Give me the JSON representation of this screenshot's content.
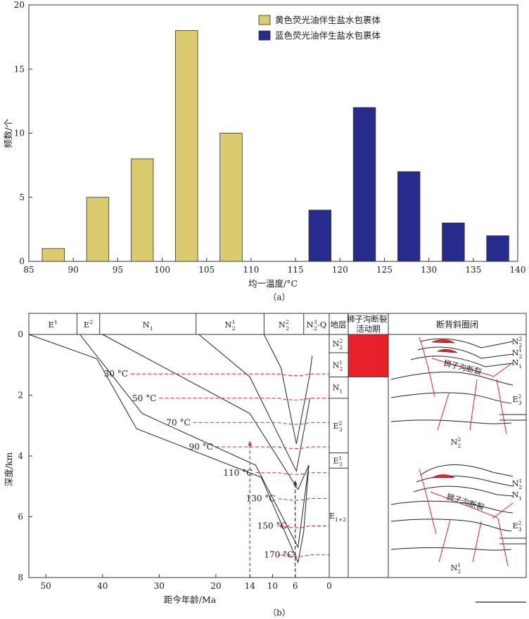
{
  "chart_data": [
    {
      "panel": "a",
      "type": "bar",
      "caption": "（a）",
      "xlabel": "均一温度/°C",
      "ylabel": "频数/个",
      "xlim": [
        85,
        140
      ],
      "ylim": [
        0,
        20
      ],
      "xticks": [
        85,
        90,
        95,
        100,
        105,
        110,
        115,
        120,
        125,
        130,
        135,
        140
      ],
      "yticks": [
        0,
        5,
        10,
        15,
        20
      ],
      "legend_position": "top-right",
      "series": [
        {
          "name": "黄色荧光油伴生盐水包裹体",
          "color": "#d9cb6e",
          "bins": [
            [
              86.5,
              89,
              1
            ],
            [
              91.5,
              94,
              5
            ],
            [
              96.5,
              99,
              8
            ],
            [
              101.5,
              104,
              18
            ],
            [
              106.5,
              109,
              10
            ]
          ]
        },
        {
          "name": "蓝色荧光油伴生盐水包裹体",
          "color": "#272b8c",
          "bins": [
            [
              116.5,
              119,
              4
            ],
            [
              121.5,
              124,
              12
            ],
            [
              126.5,
              129,
              7
            ],
            [
              131.5,
              134,
              3
            ],
            [
              136.5,
              139,
              2
            ]
          ]
        }
      ]
    },
    {
      "panel": "b",
      "type": "line",
      "caption": "（b）",
      "xlabel": "距今年龄/Ma",
      "ylabel": "深度/km",
      "xlim": [
        53,
        0
      ],
      "ylim": [
        0,
        8
      ],
      "xticks": [
        50,
        40,
        30,
        20,
        10,
        0
      ],
      "extra_xticks": [
        14,
        6
      ],
      "yticks": [
        0,
        2,
        4,
        6,
        8
      ],
      "strata": [
        {
          "base": "E",
          "sup": "1",
          "from": 53,
          "to": 44.5
        },
        {
          "base": "E",
          "sup": "2",
          "from": 44.5,
          "to": 40.5
        },
        {
          "base": "N",
          "sub": "1",
          "from": 40.5,
          "to": 23.5
        },
        {
          "base": "N",
          "sub": "2",
          "sup": "1",
          "from": 23.5,
          "to": 11.5
        },
        {
          "base": "N",
          "sub": "2",
          "sup": "2",
          "from": 11.5,
          "to": 4.5
        },
        {
          "base": "N",
          "sub": "2",
          "sup": "3",
          "tail": "-Q",
          "from": 4.5,
          "to": 0
        }
      ],
      "burial_curves": [
        [
          [
            53,
            0
          ],
          [
            41,
            0.8
          ],
          [
            34,
            3.1
          ],
          [
            12,
            4.7
          ],
          [
            5.5,
            7.5
          ],
          [
            4.5,
            6.5
          ],
          [
            3.6,
            4.3
          ]
        ],
        [
          [
            44,
            0
          ],
          [
            33,
            2.6
          ],
          [
            13,
            4.3
          ],
          [
            5.5,
            7.0
          ],
          [
            3.6,
            4.3
          ]
        ],
        [
          [
            40,
            0
          ],
          [
            14,
            2.6
          ],
          [
            5.5,
            5.1
          ],
          [
            3.6,
            4.3
          ]
        ],
        [
          [
            23,
            0
          ],
          [
            14,
            1.4
          ],
          [
            5.8,
            4.5
          ],
          [
            3.4,
            2.1
          ]
        ],
        [
          [
            11.5,
            0
          ],
          [
            8.5,
            1.1
          ],
          [
            5.8,
            3.6
          ],
          [
            3.5,
            1.4
          ],
          [
            3.0,
            0.7
          ]
        ]
      ],
      "isotherms": [
        {
          "label": "30 °C",
          "depth": 1.3
        },
        {
          "label": "50 °C",
          "depth": 2.1
        },
        {
          "label": "70 °C",
          "depth": 2.9
        },
        {
          "label": "90 °C",
          "depth": 3.7
        },
        {
          "label": "110 °C",
          "depth": 4.55
        },
        {
          "label": "130 °C",
          "depth": 5.4
        },
        {
          "label": "150 °C",
          "depth": 6.3
        },
        {
          "label": "170 °C",
          "depth": 7.25
        }
      ],
      "charge_events": [
        {
          "age": 14,
          "from_depth": 8,
          "to_depth": 3.5,
          "color": "#d6342c"
        },
        {
          "age": 6,
          "from_depth": 8,
          "to_depth": 4.8,
          "color": "#272b8c"
        }
      ],
      "stratigraphic_column": {
        "header": "地层",
        "units": [
          {
            "base": "N",
            "sub": "2",
            "sup": "2",
            "top": 0,
            "bottom": 0.6
          },
          {
            "base": "N",
            "sub": "2",
            "sup": "1",
            "top": 0.6,
            "bottom": 1.4
          },
          {
            "base": "N",
            "sub": "1",
            "top": 1.4,
            "bottom": 2.1
          },
          {
            "base": "E",
            "sub": "3",
            "sup": "2",
            "top": 2.1,
            "bottom": 3.9
          },
          {
            "base": "E",
            "sub": "3",
            "sup": "1",
            "top": 3.9,
            "bottom": 4.4
          },
          {
            "base": "E",
            "sub": "1+2",
            "top": 4.4,
            "bottom": 8
          }
        ]
      },
      "fault_activity": {
        "header": "狮子沟断裂活动期",
        "top": 0,
        "bottom": 1.4,
        "color": "#e8202a"
      },
      "anticline_panel": {
        "header": "断背斜圈闭",
        "upper": {
          "fault_label": "狮子沟断裂",
          "labels": [
            {
              "base": "N",
              "sub": "2",
              "sup": "2"
            },
            {
              "base": "N",
              "sub": "2",
              "sup": "1"
            },
            {
              "base": "N",
              "sub": "1"
            },
            {
              "base": "E",
              "sub": "3",
              "sup": "2"
            }
          ],
          "bottom_label": {
            "base": "N",
            "sub": "2",
            "sup": "2"
          }
        },
        "lower": {
          "fault_label": "狮子沟断裂",
          "labels": [
            {
              "base": "N",
              "sub": "2",
              "sup": "1"
            },
            {
              "base": "N",
              "sub": "1"
            },
            {
              "base": "E",
              "sub": "3",
              "sup": "2"
            }
          ],
          "bottom_label": {
            "base": "N",
            "sub": "2",
            "sup": "1"
          }
        }
      }
    }
  ]
}
